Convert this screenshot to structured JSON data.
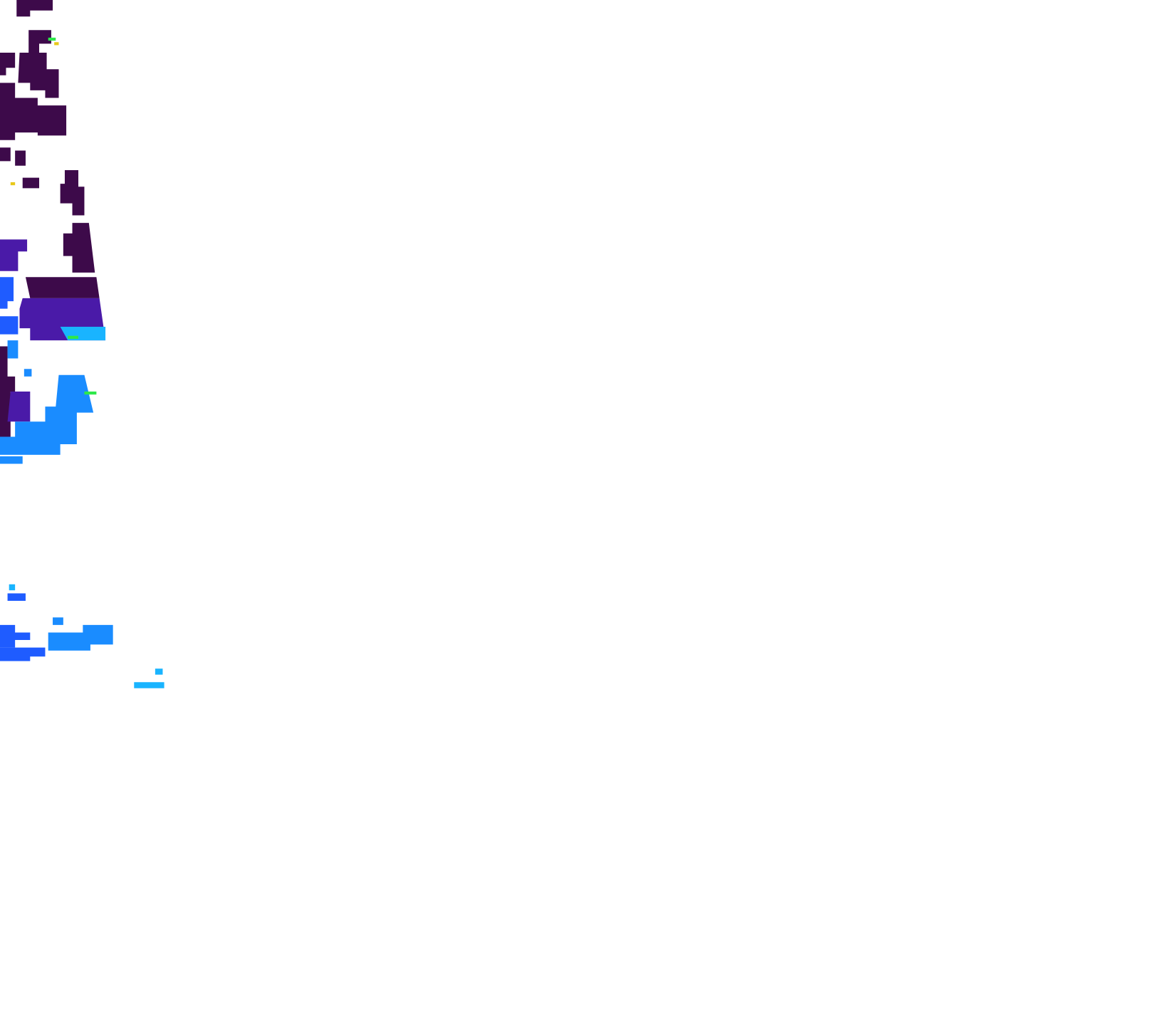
{
  "map": {
    "background": "#ffffff",
    "colors": {
      "deep": "#3d0a4a",
      "violet": "#4a1aa8",
      "indigo": "#3b2fd0",
      "blue": "#1f5cff",
      "sky": "#1a8cff",
      "cyan": "#19b4ff",
      "green": "#2ee84a",
      "yellow": "#e8c81a"
    }
  }
}
